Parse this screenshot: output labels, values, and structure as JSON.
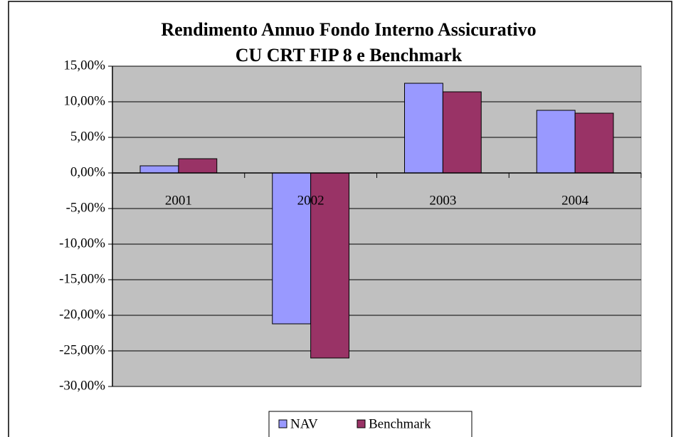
{
  "chart_data": {
    "type": "bar",
    "title": "Rendimento Annuo Fondo Interno Assicurativo",
    "subtitle": "CU CRT FIP 8 e Benchmark",
    "categories": [
      "2001",
      "2002",
      "2003",
      "2004"
    ],
    "series": [
      {
        "name": "NAV",
        "color": "#9999ff",
        "values": [
          1.0,
          -21.2,
          12.6,
          8.8
        ]
      },
      {
        "name": "Benchmark",
        "color": "#993366",
        "values": [
          2.0,
          -26.0,
          11.4,
          8.4
        ]
      }
    ],
    "ylim": [
      -30,
      15
    ],
    "yticks": [
      {
        "value": -30,
        "label": "-30,00%"
      },
      {
        "value": -25,
        "label": "-25,00%"
      },
      {
        "value": -20,
        "label": "-20,00%"
      },
      {
        "value": -15,
        "label": "-15,00%"
      },
      {
        "value": -10,
        "label": "-10,00%"
      },
      {
        "value": -5,
        "label": "-5,00%"
      },
      {
        "value": 0,
        "label": "0,00%"
      },
      {
        "value": 5,
        "label": "5,00%"
      },
      {
        "value": 10,
        "label": "10,00%"
      },
      {
        "value": 15,
        "label": "15,00%"
      }
    ],
    "grid": true,
    "legend": "bottom",
    "plot_background": "#c0c0c0"
  }
}
